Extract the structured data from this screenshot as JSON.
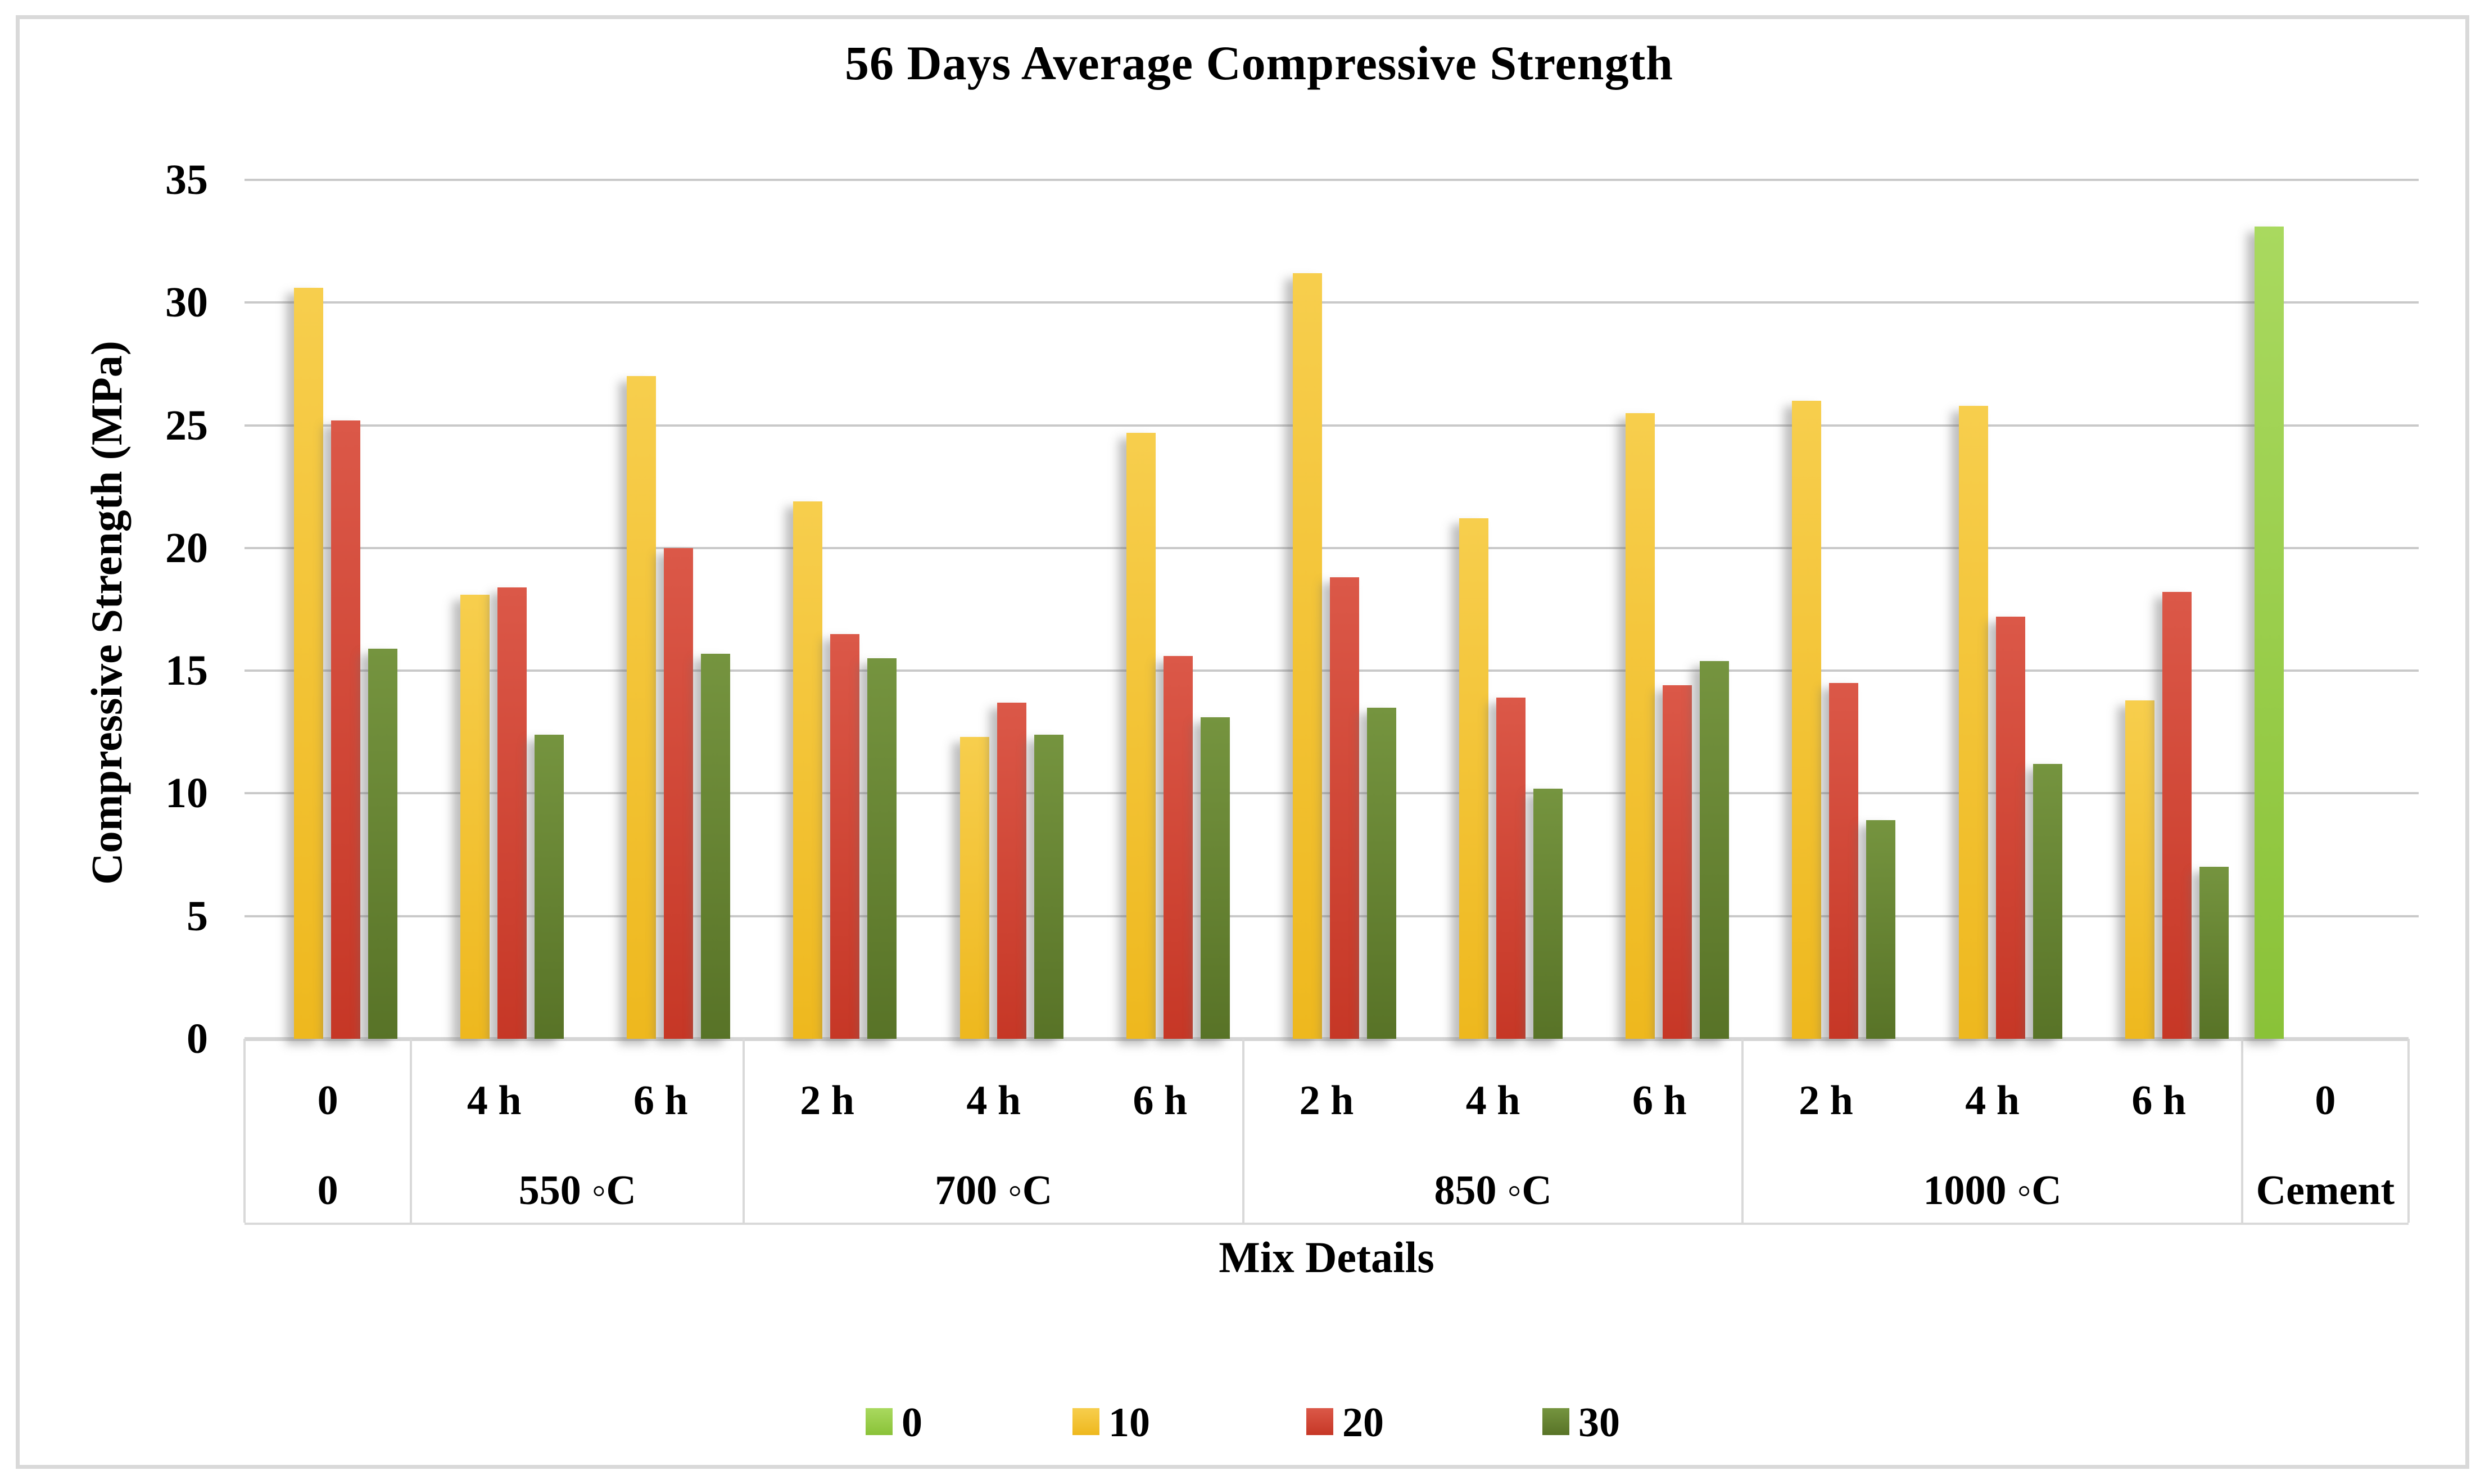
{
  "chart_data": {
    "type": "bar",
    "title": "56 Days Average Compressive Strength",
    "xlabel": "Mix Details",
    "ylabel": "Compressive Strength (MPa)",
    "ylim": [
      0,
      35
    ],
    "ytick_step": 5,
    "grid": true,
    "legend_position": "bottom",
    "legend_entries": [
      "0",
      "10",
      "20",
      "30"
    ],
    "series_meta": [
      {
        "name": "0",
        "color_top": "#A9D95F",
        "color_bottom": "#8AC238",
        "legend_color": "#97CE41"
      },
      {
        "name": "10",
        "color_top": "#F7CE4D",
        "color_bottom": "#EEB81E",
        "legend_color": "#F0C02F"
      },
      {
        "name": "20",
        "color_top": "#DB5848",
        "color_bottom": "#C63726",
        "legend_color": "#CC3A28"
      },
      {
        "name": "30",
        "color_top": "#75943F",
        "color_bottom": "#587327",
        "legend_color": "#5E7A2D"
      }
    ],
    "groups": [
      {
        "label": "0",
        "columns": [
          {
            "label": "0",
            "values": {
              "10": 30.6,
              "20": 25.2,
              "30": 15.9
            }
          }
        ]
      },
      {
        "label": "550 ◦C",
        "columns": [
          {
            "label": "4 h",
            "values": {
              "10": 18.1,
              "20": 18.4,
              "30": 12.4
            }
          },
          {
            "label": "6 h",
            "values": {
              "10": 27.0,
              "20": 20.0,
              "30": 15.7
            }
          }
        ]
      },
      {
        "label": "700 ◦C",
        "columns": [
          {
            "label": "2 h",
            "values": {
              "10": 21.9,
              "20": 16.5,
              "30": 15.5
            }
          },
          {
            "label": "4 h",
            "values": {
              "10": 12.3,
              "20": 13.7,
              "30": 12.4
            }
          },
          {
            "label": "6 h",
            "values": {
              "10": 24.7,
              "20": 15.6,
              "30": 13.1
            }
          }
        ]
      },
      {
        "label": "850 ◦C",
        "columns": [
          {
            "label": "2 h",
            "values": {
              "10": 31.2,
              "20": 18.8,
              "30": 13.5
            }
          },
          {
            "label": "4 h",
            "values": {
              "10": 21.2,
              "20": 13.9,
              "30": 10.2
            }
          },
          {
            "label": "6 h",
            "values": {
              "10": 25.5,
              "20": 14.4,
              "30": 15.4
            }
          }
        ]
      },
      {
        "label": "1000 ◦C",
        "columns": [
          {
            "label": "2 h",
            "values": {
              "10": 26.0,
              "20": 14.5,
              "30": 8.9
            }
          },
          {
            "label": "4 h",
            "values": {
              "10": 25.8,
              "20": 17.2,
              "30": 11.2
            }
          },
          {
            "label": "6 h",
            "values": {
              "10": 13.8,
              "20": 18.2,
              "30": 7.0
            }
          }
        ]
      },
      {
        "label": "Cement",
        "columns": [
          {
            "label": "0",
            "values": {
              "0": 33.1
            }
          }
        ]
      }
    ]
  }
}
